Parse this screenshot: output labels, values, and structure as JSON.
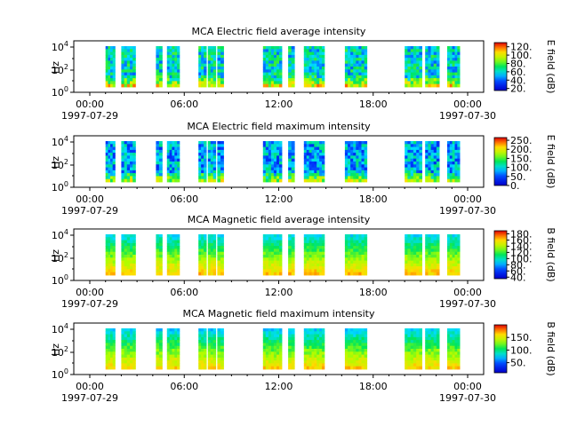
{
  "chart_data": [
    {
      "type": "heatmap",
      "title": "MCA  Electric field average intensity",
      "ylabel": "Hz",
      "y_ticks": [
        "10^4",
        "10^2",
        "10^0"
      ],
      "y_scale": "log",
      "x_ticks": [
        {
          "time": "00:00",
          "date": "1997-07-29"
        },
        {
          "time": "06:00",
          "date": ""
        },
        {
          "time": "12:00",
          "date": ""
        },
        {
          "time": "18:00",
          "date": ""
        },
        {
          "time": "00:00",
          "date": "1997-07-30"
        }
      ],
      "colorbar": {
        "label": "E field (dB)",
        "ticks": [
          "120.",
          "100.",
          "80.",
          "60.",
          "40.",
          "20."
        ],
        "range": [
          15,
          130
        ]
      },
      "data_intervals_hours": [
        [
          1.0,
          1.6
        ],
        [
          2.0,
          2.9
        ],
        [
          4.2,
          4.6
        ],
        [
          4.9,
          5.7
        ],
        [
          6.9,
          7.4
        ],
        [
          7.5,
          8.0
        ],
        [
          8.1,
          8.5
        ],
        [
          11.0,
          12.2
        ],
        [
          12.6,
          13.0
        ],
        [
          13.6,
          14.9
        ],
        [
          16.2,
          17.6
        ],
        [
          20.0,
          21.1
        ],
        [
          21.3,
          22.2
        ],
        [
          22.7,
          23.5
        ]
      ],
      "level_db": 60
    },
    {
      "type": "heatmap",
      "title": "MCA  Electric field maximum intensity",
      "ylabel": "Hz",
      "y_ticks": [
        "10^4",
        "10^2",
        "10^0"
      ],
      "y_scale": "log",
      "x_ticks": [
        {
          "time": "00:00",
          "date": "1997-07-29"
        },
        {
          "time": "06:00",
          "date": ""
        },
        {
          "time": "12:00",
          "date": ""
        },
        {
          "time": "18:00",
          "date": ""
        },
        {
          "time": "00:00",
          "date": "1997-07-30"
        }
      ],
      "colorbar": {
        "label": "E field (dB)",
        "ticks": [
          "250.",
          "200.",
          "150.",
          "100.",
          "50.",
          "0."
        ],
        "range": [
          0,
          265
        ]
      },
      "data_intervals_hours": [
        [
          1.0,
          1.6
        ],
        [
          2.0,
          2.9
        ],
        [
          4.2,
          4.6
        ],
        [
          4.9,
          5.7
        ],
        [
          6.9,
          7.4
        ],
        [
          7.5,
          8.0
        ],
        [
          8.1,
          8.5
        ],
        [
          11.0,
          12.2
        ],
        [
          12.6,
          13.0
        ],
        [
          13.6,
          14.9
        ],
        [
          16.2,
          17.6
        ],
        [
          20.0,
          21.1
        ],
        [
          21.3,
          22.2
        ],
        [
          22.7,
          23.5
        ]
      ],
      "level_db": 80
    },
    {
      "type": "heatmap",
      "title": "MCA  Magnetic field average intensity",
      "ylabel": "Hz",
      "y_ticks": [
        "10^4",
        "10^2",
        "10^0"
      ],
      "y_scale": "log",
      "x_ticks": [
        {
          "time": "00:00",
          "date": "1997-07-29"
        },
        {
          "time": "06:00",
          "date": ""
        },
        {
          "time": "12:00",
          "date": ""
        },
        {
          "time": "18:00",
          "date": ""
        },
        {
          "time": "00:00",
          "date": "1997-07-30"
        }
      ],
      "colorbar": {
        "label": "B field (dB)",
        "ticks": [
          "180.",
          "160.",
          "140.",
          "120.",
          "100.",
          "80.",
          "60.",
          "40."
        ],
        "range": [
          35,
          190
        ]
      },
      "data_intervals_hours": [
        [
          1.0,
          1.6
        ],
        [
          2.0,
          2.9
        ],
        [
          4.2,
          4.6
        ],
        [
          4.9,
          5.7
        ],
        [
          6.9,
          7.4
        ],
        [
          7.5,
          8.0
        ],
        [
          8.1,
          8.5
        ],
        [
          11.0,
          12.2
        ],
        [
          12.6,
          13.0
        ],
        [
          13.6,
          14.9
        ],
        [
          16.2,
          17.6
        ],
        [
          20.0,
          21.1
        ],
        [
          21.3,
          22.2
        ],
        [
          22.7,
          23.5
        ]
      ],
      "level_db": 120
    },
    {
      "type": "heatmap",
      "title": "MCA  Magnetic field maximum intensity",
      "ylabel": "Hz",
      "y_ticks": [
        "10^4",
        "10^2",
        "10^0"
      ],
      "y_scale": "log",
      "x_ticks": [
        {
          "time": "00:00",
          "date": "1997-07-29"
        },
        {
          "time": "06:00",
          "date": ""
        },
        {
          "time": "12:00",
          "date": ""
        },
        {
          "time": "18:00",
          "date": ""
        },
        {
          "time": "00:00",
          "date": "1997-07-30"
        }
      ],
      "colorbar": {
        "label": "B field (dB)",
        "ticks": [
          "150.",
          "100.",
          "50."
        ],
        "range": [
          10,
          200
        ]
      },
      "data_intervals_hours": [
        [
          1.0,
          1.6
        ],
        [
          2.0,
          2.9
        ],
        [
          4.2,
          4.6
        ],
        [
          4.9,
          5.7
        ],
        [
          6.9,
          7.4
        ],
        [
          7.5,
          8.0
        ],
        [
          8.1,
          8.5
        ],
        [
          11.0,
          12.2
        ],
        [
          12.6,
          13.0
        ],
        [
          13.6,
          14.9
        ],
        [
          16.2,
          17.6
        ],
        [
          20.0,
          21.1
        ],
        [
          21.3,
          22.2
        ],
        [
          22.7,
          23.5
        ]
      ],
      "level_db": 110
    }
  ]
}
